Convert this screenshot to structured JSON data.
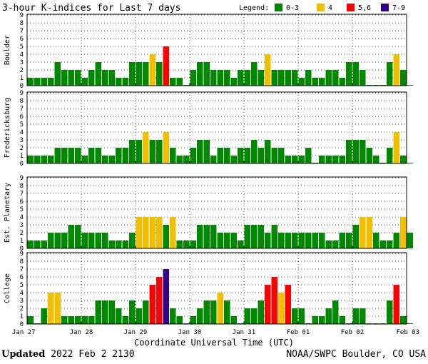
{
  "chart_data": {
    "type": "bar",
    "title": "3-hour K-indices for Last 7 days",
    "xlabel": "Coordinate Universal Time (UTC)",
    "ylim": [
      0,
      9
    ],
    "yticks": [
      0,
      1,
      2,
      3,
      4,
      5,
      6,
      7,
      8,
      9
    ],
    "x_tick_labels": [
      "Jan 27",
      "Jan 28",
      "Jan 29",
      "Jan 30",
      "Jan 31",
      "Feb 01",
      "Feb 02",
      "Feb 03"
    ],
    "bins_per_day": 8,
    "grid": true,
    "legend": {
      "label": "Legend:",
      "placement": "top-right",
      "items": [
        {
          "label": "0-3",
          "color": "#008800"
        },
        {
          "label": "4",
          "color": "#f0c000"
        },
        {
          "label": "5,6",
          "color": "#ff0000"
        },
        {
          "label": "7-9",
          "color": "#330088"
        }
      ]
    },
    "series": [
      {
        "name": "Boulder",
        "values": [
          1,
          1,
          1,
          1,
          3,
          2,
          2,
          2,
          1,
          2,
          3,
          2,
          2,
          1,
          1,
          3,
          3,
          3,
          4,
          3,
          5,
          1,
          1,
          0,
          2,
          3,
          3,
          2,
          2,
          2,
          1,
          2,
          2,
          3,
          2,
          4,
          2,
          2,
          2,
          2,
          1,
          2,
          1,
          1,
          2,
          2,
          1,
          3,
          3,
          2,
          0,
          0,
          0,
          3,
          4,
          2,
          0
        ]
      },
      {
        "name": "Fredericksburg",
        "values": [
          1,
          1,
          1,
          1,
          2,
          2,
          2,
          2,
          1,
          2,
          2,
          1,
          1,
          2,
          2,
          3,
          3,
          4,
          3,
          3,
          4,
          2,
          1,
          1,
          2,
          3,
          3,
          1,
          2,
          2,
          1,
          2,
          2,
          3,
          2,
          3,
          2,
          2,
          1,
          1,
          1,
          2,
          0,
          1,
          1,
          1,
          1,
          3,
          3,
          3,
          2,
          1,
          0,
          2,
          4,
          1,
          0
        ]
      },
      {
        "name": "Est. Planetary",
        "values": [
          1,
          1,
          1,
          2,
          2,
          2,
          3,
          3,
          2,
          2,
          2,
          2,
          1,
          1,
          1,
          2,
          4,
          4,
          4,
          4,
          3,
          4,
          1,
          1,
          1,
          3,
          3,
          3,
          2,
          2,
          2,
          1,
          3,
          3,
          3,
          2,
          3,
          2,
          2,
          2,
          2,
          2,
          2,
          2,
          1,
          1,
          2,
          2,
          3,
          4,
          4,
          2,
          1,
          1,
          2,
          4,
          2
        ]
      },
      {
        "name": "College",
        "values": [
          1,
          0,
          2,
          4,
          4,
          1,
          1,
          1,
          1,
          1,
          3,
          3,
          3,
          2,
          1,
          3,
          2,
          3,
          5,
          6,
          7,
          2,
          1,
          0,
          1,
          2,
          3,
          3,
          4,
          3,
          1,
          0,
          2,
          2,
          3,
          5,
          6,
          4,
          5,
          2,
          2,
          0,
          1,
          1,
          2,
          3,
          1,
          0,
          2,
          2,
          0,
          0,
          0,
          3,
          5,
          1,
          0
        ]
      }
    ]
  },
  "footer": {
    "updated_label": "Updated",
    "updated_value": "2022 Feb  2 2130",
    "credit": "NOAA/SWPC Boulder, CO USA"
  }
}
